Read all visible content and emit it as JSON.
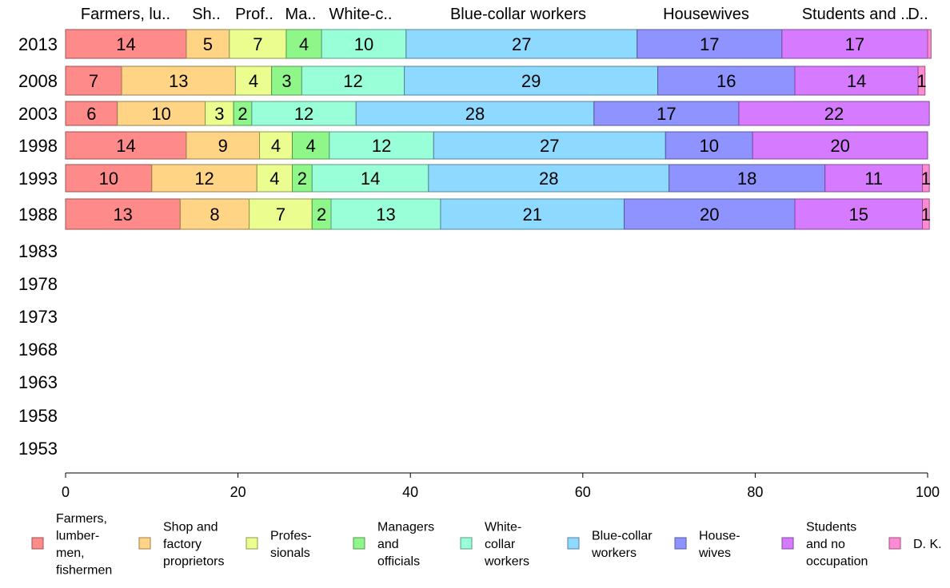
{
  "chart_data": {
    "type": "bar",
    "orientation": "horizontal",
    "stacked": true,
    "xlim": [
      0,
      100
    ],
    "xticks": [
      0,
      20,
      40,
      60,
      80,
      100
    ],
    "categories": [
      "2013",
      "2008",
      "2003",
      "1998",
      "1993",
      "1988",
      "1983",
      "1978",
      "1973",
      "1968",
      "1963",
      "1958",
      "1953"
    ],
    "top_labels": [
      "Farmers, lu..",
      "Sh..",
      "Prof..",
      "Ma..",
      "White-c..",
      "Blue-collar workers",
      "Housewives",
      "Students and ..",
      "D.."
    ],
    "series": [
      {
        "name": "Farmers, lumber- men, fishermen",
        "legend_lines": [
          "Farmers,",
          "lumber-",
          "men,",
          "fishermen"
        ],
        "color": "#ff8a8a",
        "values": [
          14,
          6.5,
          6,
          14,
          10,
          13.3,
          null,
          null,
          null,
          null,
          null,
          null,
          null
        ],
        "labels": [
          "14",
          "7",
          "6",
          "14",
          "10",
          "13",
          "",
          "",
          "",
          "",
          "",
          "",
          ""
        ]
      },
      {
        "name": "Shop and factory proprietors",
        "legend_lines": [
          "Shop and",
          "factory",
          "proprietors"
        ],
        "color": "#ffd485",
        "values": [
          5,
          13.2,
          10.2,
          8.5,
          12.2,
          8,
          null,
          null,
          null,
          null,
          null,
          null,
          null
        ],
        "labels": [
          "5",
          "13",
          "10",
          "9",
          "12",
          "8",
          "",
          "",
          "",
          "",
          "",
          "",
          ""
        ]
      },
      {
        "name": "Profes- sionals",
        "legend_lines": [
          "Profes-",
          "sionals"
        ],
        "color": "#ebfd8e",
        "values": [
          6.6,
          4.2,
          3.3,
          3.8,
          4.1,
          7.3,
          null,
          null,
          null,
          null,
          null,
          null,
          null
        ],
        "labels": [
          "7",
          "4",
          "3",
          "4",
          "4",
          "7",
          "",
          "",
          "",
          "",
          "",
          "",
          ""
        ]
      },
      {
        "name": "Managers and officials",
        "legend_lines": [
          "Managers",
          "and",
          "officials"
        ],
        "color": "#8ff78a",
        "values": [
          4.1,
          3.5,
          2.1,
          4.3,
          2.3,
          2.2,
          null,
          null,
          null,
          null,
          null,
          null,
          null
        ],
        "labels": [
          "4",
          "3",
          "2",
          "4",
          "2",
          "2",
          "",
          "",
          "",
          "",
          "",
          "",
          ""
        ]
      },
      {
        "name": "White- collar workers",
        "legend_lines": [
          "White-",
          "collar",
          "workers"
        ],
        "color": "#99ffd9",
        "values": [
          9.8,
          11.9,
          12.1,
          12.1,
          13.5,
          12.7,
          null,
          null,
          null,
          null,
          null,
          null,
          null
        ],
        "labels": [
          "10",
          "12",
          "12",
          "12",
          "14",
          "13",
          "",
          "",
          "",
          "",
          "",
          "",
          ""
        ]
      },
      {
        "name": "Blue-collar workers",
        "legend_lines": [
          "Blue-collar",
          "workers"
        ],
        "color": "#8ed9ff",
        "values": [
          26.8,
          29.4,
          27.6,
          26.9,
          27.9,
          21.3,
          null,
          null,
          null,
          null,
          null,
          null,
          null
        ],
        "labels": [
          "27",
          "29",
          "28",
          "27",
          "28",
          "21",
          "",
          "",
          "",
          "",
          "",
          "",
          ""
        ]
      },
      {
        "name": "House- wives",
        "legend_lines": [
          "House-",
          "wives"
        ],
        "color": "#8f93ff",
        "values": [
          16.8,
          15.9,
          16.8,
          10.1,
          18.1,
          19.8,
          null,
          null,
          null,
          null,
          null,
          null,
          null
        ],
        "labels": [
          "17",
          "16",
          "17",
          "10",
          "18",
          "20",
          "",
          "",
          "",
          "",
          "",
          "",
          ""
        ]
      },
      {
        "name": "Students and no occupation",
        "legend_lines": [
          "Students",
          "and no",
          "occupation"
        ],
        "color": "#d67aff",
        "values": [
          16.9,
          14.3,
          22.1,
          20.3,
          11.3,
          14.8,
          null,
          null,
          null,
          null,
          null,
          null,
          null
        ],
        "labels": [
          "17",
          "14",
          "22",
          "20",
          "11",
          "15",
          "",
          "",
          "",
          "",
          "",
          "",
          ""
        ]
      },
      {
        "name": "D. K.",
        "legend_lines": [
          "D. K."
        ],
        "color": "#ff8ad4",
        "values": [
          0.4,
          0.8,
          0,
          0,
          0.8,
          0.8,
          null,
          null,
          null,
          null,
          null,
          null,
          null
        ],
        "labels": [
          "",
          "1",
          "",
          "",
          "1",
          "1",
          "",
          "",
          "",
          "",
          "",
          "",
          ""
        ]
      }
    ],
    "grid": false,
    "legend": "bottom"
  }
}
